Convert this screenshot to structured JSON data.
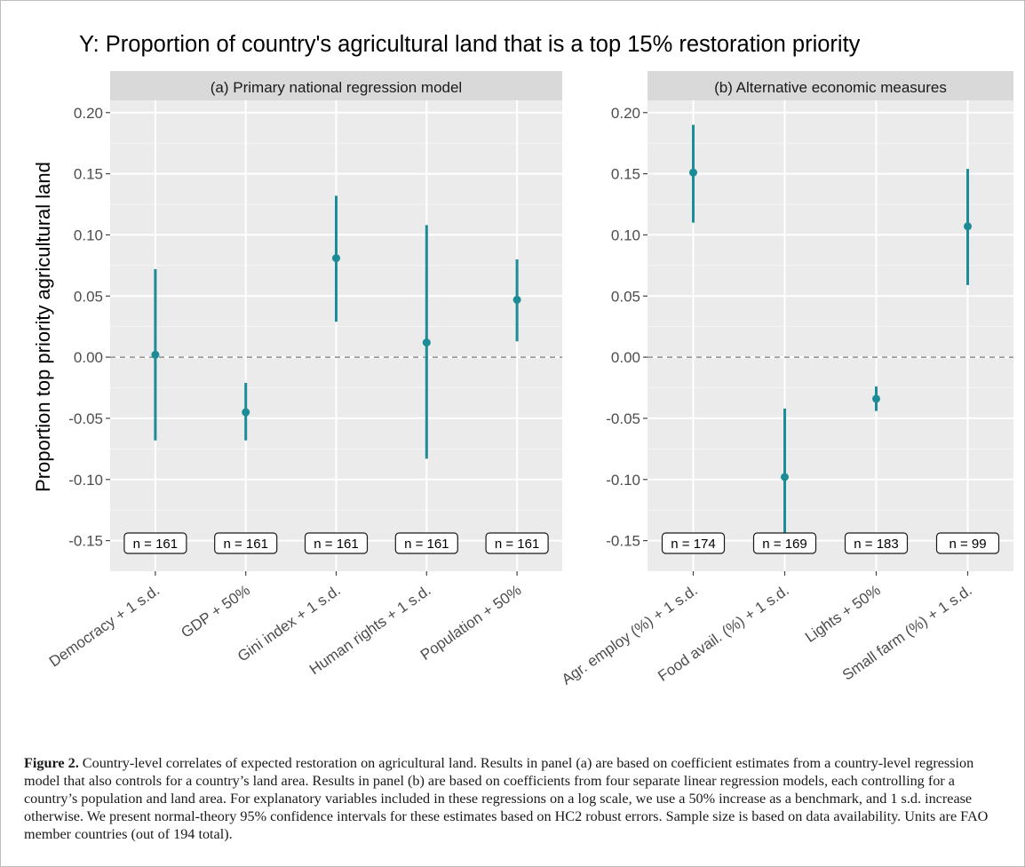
{
  "chart_data": {
    "title": "Y: Proportion of country's agricultural land that is a top 15% restoration priority",
    "ylabel": "Proportion top priority agricultural land",
    "ylim": [
      -0.175,
      0.21
    ],
    "yticks": [
      "-0.15",
      "-0.10",
      "-0.05",
      "0.00",
      "0.05",
      "0.10",
      "0.15",
      "0.20"
    ],
    "yvalues": [
      -0.15,
      -0.1,
      -0.05,
      0.0,
      0.05,
      0.1,
      0.15,
      0.2
    ],
    "reference_line": 0,
    "point_color": "#1c8c96",
    "panel_background": "#ebebeb",
    "strip_background": "#d9d9d9",
    "panels": [
      {
        "type": "pointrange",
        "title": "(a) Primary national regression model",
        "categories": [
          "Democracy + 1 s.d.",
          "GDP + 50%",
          "Gini index + 1 s.d.",
          "Human rights + 1 s.d.",
          "Population + 50%"
        ],
        "estimate": [
          0.002,
          -0.045,
          0.081,
          0.012,
          0.047
        ],
        "lower": [
          -0.068,
          -0.068,
          0.029,
          -0.083,
          0.013
        ],
        "upper": [
          0.072,
          -0.021,
          0.132,
          0.108,
          0.08
        ],
        "n_labels": [
          "n = 161",
          "n = 161",
          "n = 161",
          "n = 161",
          "n = 161"
        ]
      },
      {
        "type": "pointrange",
        "title": "(b) Alternative economic measures",
        "categories": [
          "Agr. employ (%) + 1 s.d.",
          "Food avail. (%) + 1 s.d.",
          "Lights + 50%",
          "Small farm (%) + 1 s.d."
        ],
        "estimate": [
          0.151,
          -0.098,
          -0.034,
          0.107
        ],
        "lower": [
          0.11,
          -0.153,
          -0.044,
          0.059
        ],
        "upper": [
          0.19,
          -0.042,
          -0.024,
          0.154
        ],
        "n_labels": [
          "n = 174",
          "n = 169",
          "n = 183",
          "n = 99"
        ]
      }
    ]
  },
  "caption": {
    "label": "Figure 2.",
    "text": "Country-level correlates of expected restoration on agricultural land. Results in panel (a) are based on coefficient estimates from a country-level regression model that also controls for a country’s land area. Results in panel (b) are based on coefficients from four separate linear regression models, each controlling for a country’s population and land area. For explanatory variables included in these regressions on a log scale, we use a 50% increase as a benchmark, and 1 s.d. increase otherwise. We present normal-theory 95% confidence intervals for these estimates based on HC2 robust errors. Sample size is based on data availability. Units are FAO member countries (out of 194 total)."
  }
}
